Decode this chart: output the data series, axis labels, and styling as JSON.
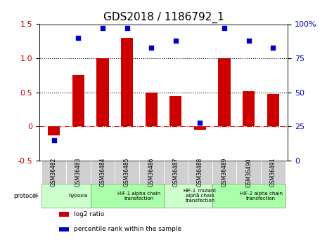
{
  "title": "GDS2018 / 1186792_1",
  "samples": [
    "GSM36482",
    "GSM36483",
    "GSM36484",
    "GSM36485",
    "GSM36486",
    "GSM36487",
    "GSM36488",
    "GSM36489",
    "GSM36490",
    "GSM36491"
  ],
  "log2_ratio": [
    -0.13,
    0.75,
    1.0,
    1.3,
    0.5,
    0.45,
    -0.05,
    1.0,
    0.52,
    0.48
  ],
  "percentile_rank": [
    15,
    90,
    97,
    97,
    83,
    88,
    28,
    97,
    88,
    83
  ],
  "ylim_left": [
    -0.5,
    1.5
  ],
  "ylim_right": [
    0,
    100
  ],
  "yticks_left": [
    -0.5,
    0,
    0.5,
    1.0,
    1.5
  ],
  "yticks_right": [
    0,
    25,
    50,
    75,
    100
  ],
  "hline_values": [
    0.5,
    1.0
  ],
  "bar_color": "#cc0000",
  "dot_color": "#0000cc",
  "zero_line_color": "#cc0000",
  "protocols": [
    {
      "label": "hypoxia",
      "start": 0,
      "end": 2,
      "color": "#ccffcc"
    },
    {
      "label": "HIF-1 alpha chain\ntransfection",
      "start": 2,
      "end": 5,
      "color": "#aaffaa"
    },
    {
      "label": "HIF-1_mutant\nalpha chain\ntransfection",
      "start": 5,
      "end": 7,
      "color": "#ccffcc"
    },
    {
      "label": "HIF-2 alpha chain\ntransfection",
      "start": 7,
      "end": 10,
      "color": "#aaffaa"
    }
  ],
  "legend_items": [
    {
      "color": "#cc0000",
      "label": "log2 ratio"
    },
    {
      "color": "#0000cc",
      "label": "percentile rank within the sample"
    }
  ],
  "bg_color": "#ffffff",
  "tick_label_color_left": "#cc0000",
  "tick_label_color_right": "#0000cc",
  "title_fontsize": 11,
  "axis_fontsize": 8,
  "bar_width": 0.5
}
